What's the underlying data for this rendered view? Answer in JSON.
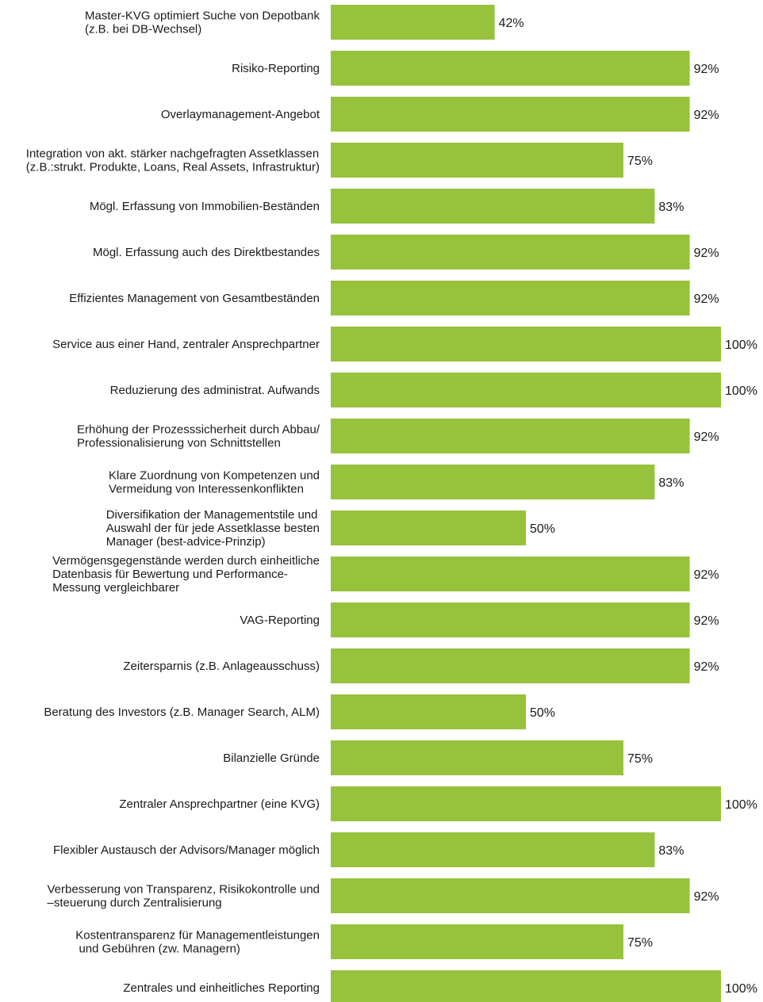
{
  "chart_data": {
    "type": "bar",
    "orientation": "horizontal",
    "categories": [
      [
        "Master-KVG optimiert Suche von Depotbank",
        "(z.B. bei DB-Wechsel)"
      ],
      [
        "Risiko-Reporting"
      ],
      [
        "Overlaymanagement-Angebot"
      ],
      [
        "Integration von akt. stärker nachgefragten Assetklassen",
        "(z.B.:strukt. Produkte, Loans, Real Assets, Infrastruktur)"
      ],
      [
        "Mögl. Erfassung von Immobilien-Beständen"
      ],
      [
        "Mögl. Erfassung auch des Direktbestandes"
      ],
      [
        "Effizientes Management von Gesamtbeständen"
      ],
      [
        "Service aus einer Hand, zentraler Ansprechpartner"
      ],
      [
        "Reduzierung des administrat. Aufwands"
      ],
      [
        "Erhöhung der Prozesssicherheit durch Abbau/",
        "Professionalisierung von Schnittstellen"
      ],
      [
        "Klare Zuordnung von Kompetenzen und",
        "Vermeidung von Interessenkonflikten"
      ],
      [
        "Diversifikation der Managementstile und",
        "Auswahl der für jede Assetklasse besten",
        "Manager (best-advice-Prinzip)"
      ],
      [
        "Vermögensgegenstände werden durch einheitliche",
        "Datenbasis für Bewertung und Performance-",
        "Messung vergleichbarer"
      ],
      [
        "VAG-Reporting"
      ],
      [
        "Zeitersparnis (z.B. Anlageausschuss)"
      ],
      [
        "Beratung des Investors (z.B. Manager Search, ALM)"
      ],
      [
        "Bilanzielle Gründe"
      ],
      [
        "Zentraler Ansprechpartner (eine KVG)"
      ],
      [
        "Flexibler Austausch der Advisors/Manager möglich"
      ],
      [
        "Verbesserung von Transparenz, Risikokontrolle und",
        "–steuerung durch Zentralisierung"
      ],
      [
        "Kostentransparenz für Managementleistungen",
        " und Gebühren (zw. Managern)"
      ],
      [
        "Zentrales und einheitliches Reporting"
      ]
    ],
    "values": [
      42,
      92,
      92,
      75,
      83,
      92,
      92,
      100,
      100,
      92,
      83,
      50,
      92,
      92,
      92,
      50,
      75,
      100,
      83,
      92,
      75,
      100
    ],
    "value_labels": [
      "42%",
      "92%",
      "92%",
      "75%",
      "83%",
      "92%",
      "92%",
      "100%",
      "100%",
      "92%",
      "83%",
      "50%",
      "92%",
      "92%",
      "92%",
      "50%",
      "75%",
      "100%",
      "83%",
      "92%",
      "75%",
      "100%"
    ],
    "xlim": [
      0,
      100
    ],
    "unit": "%",
    "bar_color": "#97c23c",
    "text_color": "#1a1a1a",
    "grid": false,
    "legend": "none"
  }
}
